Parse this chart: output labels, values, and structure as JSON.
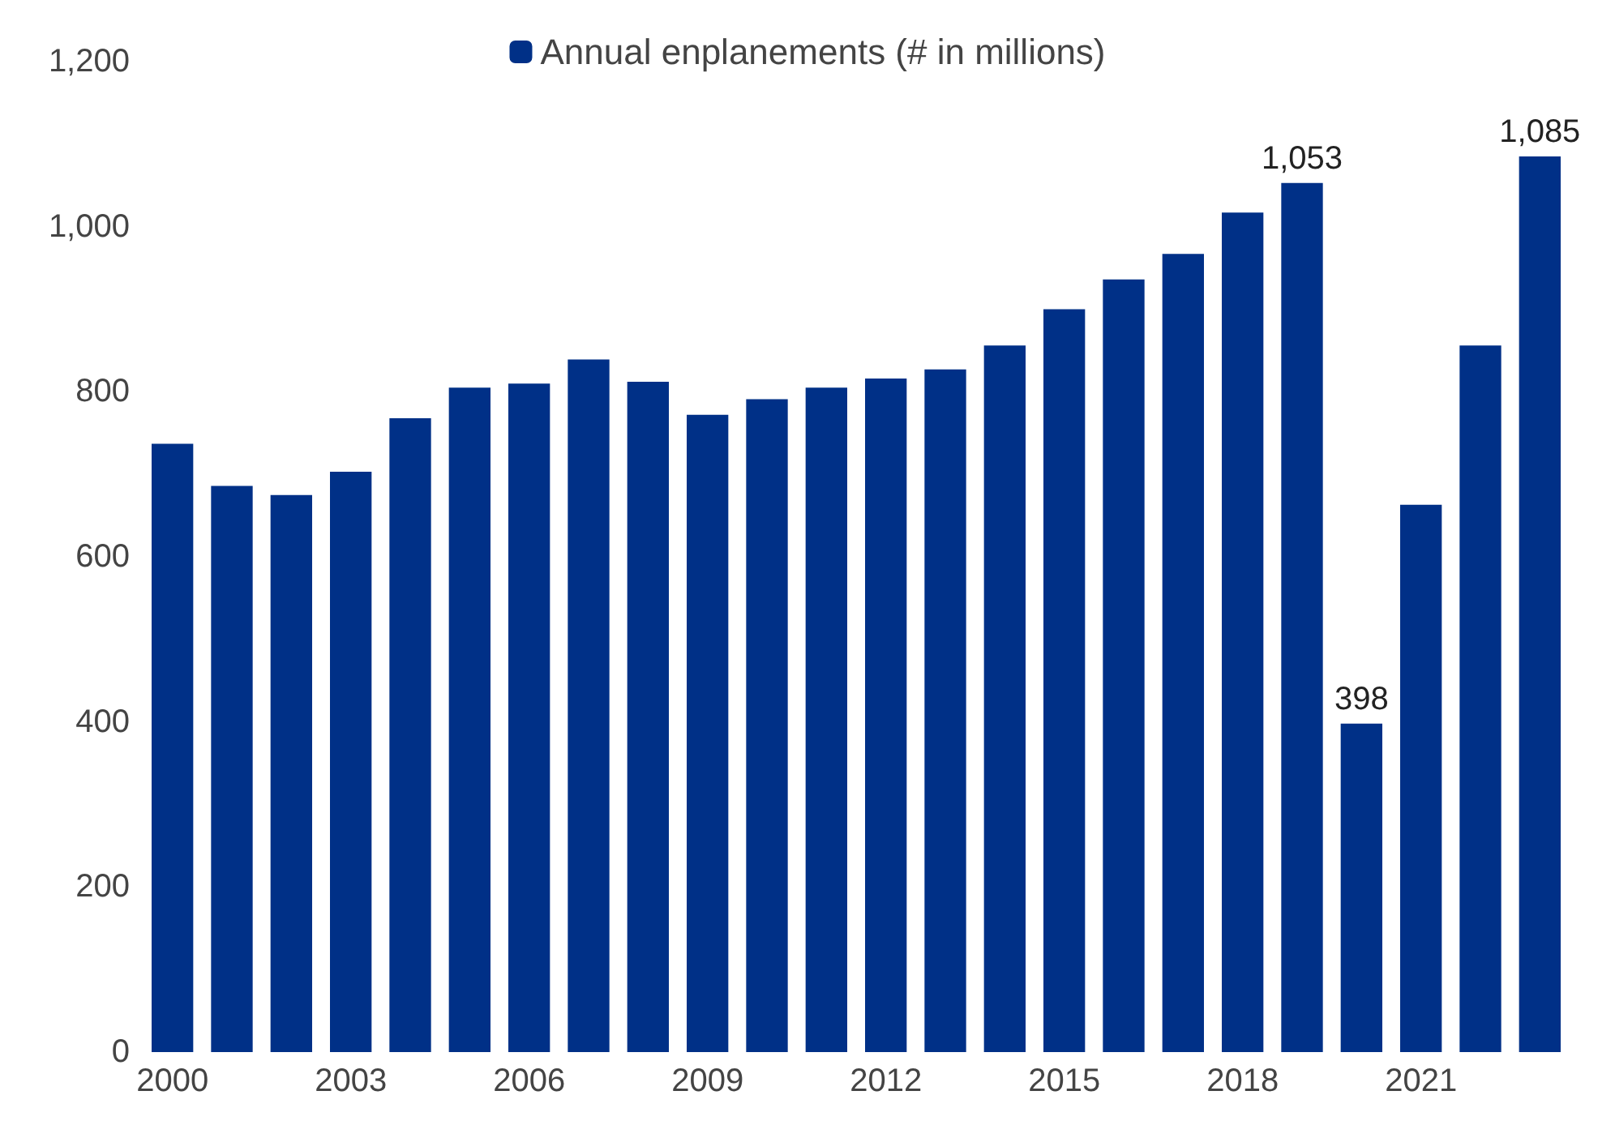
{
  "chart_data": {
    "type": "bar",
    "categories": [
      "2000",
      null,
      null,
      "2003",
      null,
      null,
      "2006",
      null,
      null,
      "2009",
      null,
      null,
      "2012",
      null,
      null,
      "2015",
      null,
      null,
      "2018",
      null,
      null,
      "2021",
      null,
      null
    ],
    "series": [
      {
        "name": "Annual enplanements (# in millions)",
        "color": "#003087",
        "values": [
          737,
          686,
          675,
          703,
          768,
          805,
          810,
          839,
          812,
          772,
          791,
          805,
          816,
          827,
          856,
          900,
          936,
          967,
          1017,
          1053,
          398,
          663,
          856,
          1085
        ],
        "value_labels": [
          null,
          null,
          null,
          null,
          null,
          null,
          null,
          null,
          null,
          null,
          null,
          null,
          null,
          null,
          null,
          null,
          null,
          null,
          null,
          "1,053",
          "398",
          null,
          null,
          "1,085"
        ]
      }
    ],
    "ylim": [
      0,
      1200
    ],
    "yticks": [
      0,
      200,
      400,
      600,
      800,
      {
        "value": 1000,
        "label": "1,000"
      },
      {
        "value": 1200,
        "label": "1,200"
      }
    ],
    "grid": false,
    "legend": "top"
  }
}
